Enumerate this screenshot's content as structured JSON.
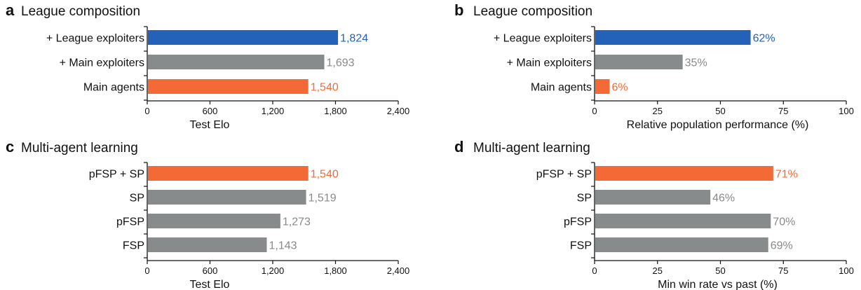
{
  "colors": {
    "highlight_blue": "#2461b8",
    "highlight_orange": "#f46a36",
    "neutral_gray": "#888b8c",
    "gray_label": "#8a8a8a",
    "axis": "#111111"
  },
  "chart_data": [
    {
      "panel": "a",
      "type": "bar",
      "orientation": "horizontal",
      "title": "League composition",
      "xlabel": "Test Elo",
      "xlim": [
        0,
        2400
      ],
      "xticks": [
        0,
        600,
        1200,
        1800,
        2400
      ],
      "xtick_labels": [
        "0",
        "600",
        "1,200",
        "1,800",
        "2,400"
      ],
      "categories": [
        "+ League exploiters",
        "+ Main exploiters",
        "Main agents"
      ],
      "values": [
        1824,
        1693,
        1540
      ],
      "value_labels": [
        "1,824",
        "1,693",
        "1,540"
      ],
      "colors": [
        "blue",
        "gray",
        "orange"
      ]
    },
    {
      "panel": "b",
      "type": "bar",
      "orientation": "horizontal",
      "title": "League composition",
      "xlabel": "Relative population performance (%)",
      "xlim": [
        0,
        100
      ],
      "xticks": [
        0,
        25,
        50,
        75,
        100
      ],
      "xtick_labels": [
        "0",
        "25",
        "50",
        "75",
        "100"
      ],
      "categories": [
        "+ League exploiters",
        "+ Main exploiters",
        "Main agents"
      ],
      "values": [
        62,
        35,
        6
      ],
      "value_labels": [
        "62%",
        "35%",
        "6%"
      ],
      "colors": [
        "blue",
        "gray",
        "orange"
      ]
    },
    {
      "panel": "c",
      "type": "bar",
      "orientation": "horizontal",
      "title": "Multi-agent learning",
      "xlabel": "Test Elo",
      "xlim": [
        0,
        2400
      ],
      "xticks": [
        0,
        600,
        1200,
        1800,
        2400
      ],
      "xtick_labels": [
        "0",
        "600",
        "1,200",
        "1,800",
        "2,400"
      ],
      "categories": [
        "pFSP + SP",
        "SP",
        "pFSP",
        "FSP"
      ],
      "values": [
        1540,
        1519,
        1273,
        1143
      ],
      "value_labels": [
        "1,540",
        "1,519",
        "1,273",
        "1,143"
      ],
      "colors": [
        "orange",
        "gray",
        "gray",
        "gray"
      ]
    },
    {
      "panel": "d",
      "type": "bar",
      "orientation": "horizontal",
      "title": "Multi-agent learning",
      "xlabel": "Min win rate vs past (%)",
      "xlim": [
        0,
        100
      ],
      "xticks": [
        0,
        25,
        50,
        75,
        100
      ],
      "xtick_labels": [
        "0",
        "25",
        "50",
        "75",
        "100"
      ],
      "categories": [
        "pFSP + SP",
        "SP",
        "pFSP",
        "FSP"
      ],
      "values": [
        71,
        46,
        70,
        69
      ],
      "value_labels": [
        "71%",
        "46%",
        "70%",
        "69%"
      ],
      "colors": [
        "orange",
        "gray",
        "gray",
        "gray"
      ]
    }
  ]
}
